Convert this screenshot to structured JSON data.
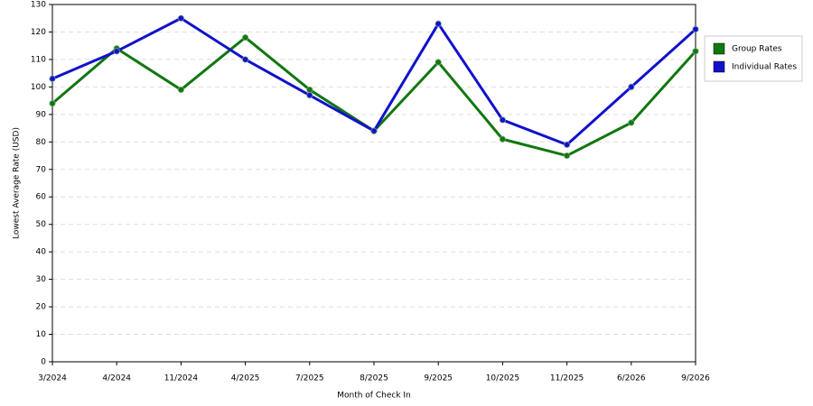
{
  "chart_data": {
    "type": "line",
    "x_label": "Month of Check In",
    "y_label": "Lowest Average Rate (USD)",
    "categories": [
      "3/2024",
      "4/2024",
      "11/2024",
      "4/2025",
      "7/2025",
      "8/2025",
      "9/2025",
      "10/2025",
      "11/2025",
      "6/2026",
      "9/2026"
    ],
    "series": [
      {
        "name": "Group Rates",
        "color": "#117711",
        "values": [
          94,
          114,
          99,
          118,
          99,
          84,
          109,
          81,
          75,
          87,
          113
        ]
      },
      {
        "name": "Individual Rates",
        "color": "#1111cc",
        "values": [
          103,
          113,
          125,
          110,
          97,
          84,
          123,
          88,
          79,
          100,
          121
        ]
      }
    ],
    "ylim": [
      0,
      130
    ],
    "yticks": [
      0,
      10,
      20,
      30,
      40,
      50,
      60,
      70,
      80,
      90,
      100,
      110,
      120,
      130
    ],
    "grid": true,
    "legend": "right"
  }
}
